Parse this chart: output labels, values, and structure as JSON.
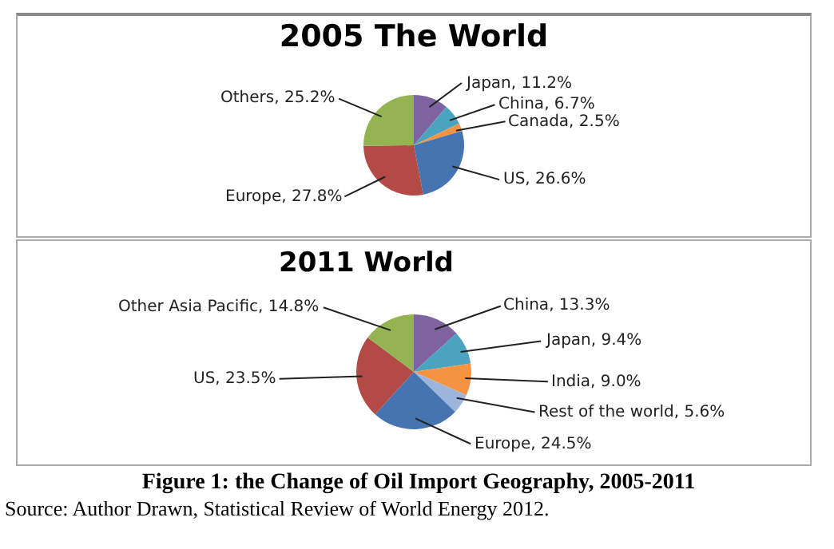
{
  "chart_data": [
    {
      "type": "pie",
      "title": "2005 The World",
      "categories": [
        "Japan",
        "China",
        "Canada",
        "US",
        "Europe",
        "Others"
      ],
      "values": [
        11.2,
        6.7,
        2.5,
        26.6,
        27.8,
        25.2
      ],
      "value_labels": [
        "11.2%",
        "6.7%",
        "2.5%",
        "26.6%",
        "27.8%",
        "25.2%"
      ],
      "colors": [
        "#7f63a1",
        "#4aa4c0",
        "#f59343",
        "#4674b0",
        "#b24a46",
        "#93b450"
      ],
      "legend": false
    },
    {
      "type": "pie",
      "title": "2011 World",
      "categories": [
        "China",
        "Japan",
        "India",
        "Rest of the world",
        "Europe",
        "US",
        "Other Asia Pacific"
      ],
      "values": [
        13.3,
        9.4,
        9.0,
        5.6,
        24.5,
        23.5,
        14.8
      ],
      "value_labels": [
        "13.3%",
        "9.4%",
        "9.0%",
        "5.6%",
        "24.5%",
        "23.5%",
        "14.8%"
      ],
      "colors": [
        "#7f63a1",
        "#4aa4c0",
        "#f59343",
        "#9db5dc",
        "#4674b0",
        "#b24a46",
        "#93b450"
      ],
      "legend": false,
      "annotations": [
        "Figure 1: the Change of Oil Import  Geography, 2005-2011",
        "Source: Author Drawn, Statistical Review of World Energy 2012."
      ]
    }
  ]
}
